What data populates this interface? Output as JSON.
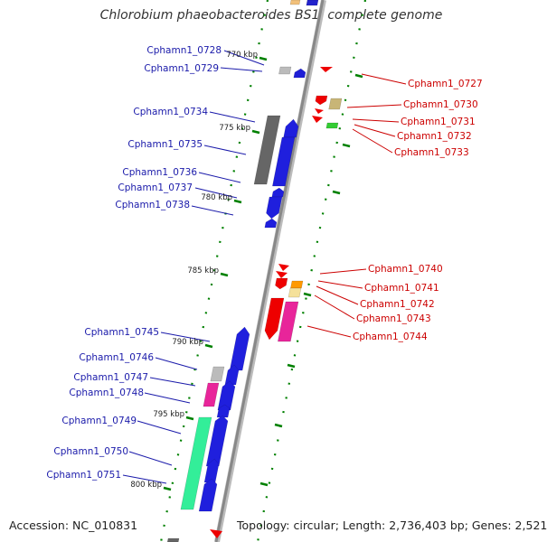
{
  "title": "Chlorobium phaeobacteroides BS1, complete genome",
  "footer": {
    "accession": "Accession: NC_010831",
    "topology": "Topology: circular; Length: 2,736,403 bp; Genes: 2,521"
  },
  "colors": {
    "left_label": "#1a1aaa",
    "right_label": "#cc0000",
    "tick": "#008000",
    "backbone": "#888888"
  },
  "kbp_ticks": [
    "770 kbp",
    "775 kbp",
    "780 kbp",
    "785 kbp",
    "790 kbp",
    "795 kbp",
    "800 kbp"
  ],
  "left_genes": [
    {
      "name": "Cphamn1_0728"
    },
    {
      "name": "Cphamn1_0729"
    },
    {
      "name": "Cphamn1_0734"
    },
    {
      "name": "Cphamn1_0735"
    },
    {
      "name": "Cphamn1_0736"
    },
    {
      "name": "Cphamn1_0737"
    },
    {
      "name": "Cphamn1_0738"
    },
    {
      "name": "Cphamn1_0745"
    },
    {
      "name": "Cphamn1_0746"
    },
    {
      "name": "Cphamn1_0747"
    },
    {
      "name": "Cphamn1_0748"
    },
    {
      "name": "Cphamn1_0749"
    },
    {
      "name": "Cphamn1_0750"
    },
    {
      "name": "Cphamn1_0751"
    }
  ],
  "right_genes": [
    {
      "name": "Cphamn1_0727"
    },
    {
      "name": "Cphamn1_0730"
    },
    {
      "name": "Cphamn1_0731"
    },
    {
      "name": "Cphamn1_0732"
    },
    {
      "name": "Cphamn1_0733"
    },
    {
      "name": "Cphamn1_0740"
    },
    {
      "name": "Cphamn1_0741"
    },
    {
      "name": "Cphamn1_0742"
    },
    {
      "name": "Cphamn1_0743"
    },
    {
      "name": "Cphamn1_0744"
    }
  ]
}
